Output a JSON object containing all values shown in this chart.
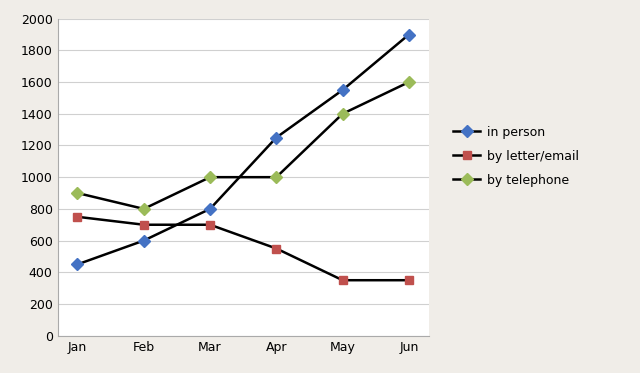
{
  "months": [
    "Jan",
    "Feb",
    "Mar",
    "Apr",
    "May",
    "Jun"
  ],
  "in_person": [
    450,
    600,
    800,
    1250,
    1550,
    1900
  ],
  "by_letter_email": [
    750,
    700,
    700,
    550,
    350,
    350
  ],
  "by_telephone": [
    900,
    800,
    1000,
    1000,
    1400,
    1600
  ],
  "line_color": "#000000",
  "marker_color_in_person": "#4472c4",
  "marker_color_letter": "#c0504d",
  "marker_color_telephone": "#9bbb59",
  "legend_labels": [
    "in person",
    "by letter/email",
    "by telephone"
  ],
  "ylim": [
    0,
    2000
  ],
  "yticks": [
    0,
    200,
    400,
    600,
    800,
    1000,
    1200,
    1400,
    1600,
    1800,
    2000
  ],
  "background_color": "#f0ede8",
  "plot_bg_color": "#ffffff",
  "grid_color": "#d0d0d0",
  "spine_color": "#aaaaaa",
  "tick_fontsize": 9,
  "legend_fontsize": 9
}
